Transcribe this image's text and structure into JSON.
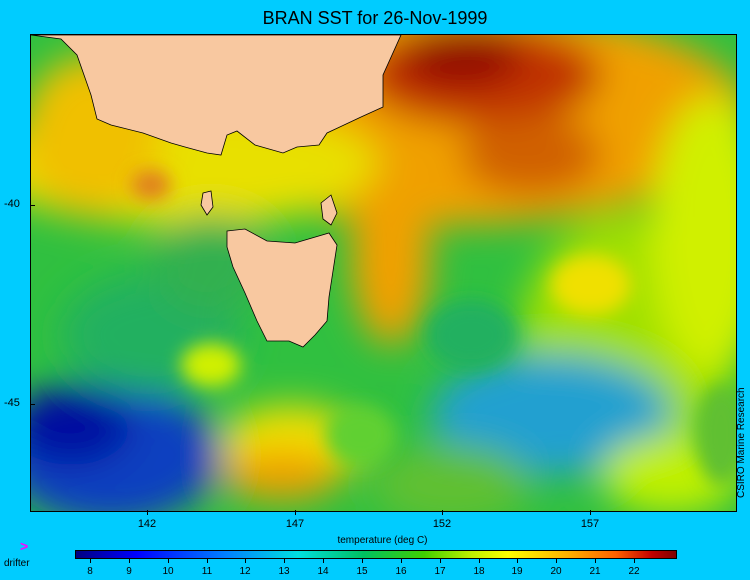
{
  "title": "BRAN SST for 26-Nov-1999",
  "x_axis": {
    "label": "temperature (deg C)",
    "ticks": [
      "142",
      "147",
      "152",
      "157"
    ]
  },
  "y_axis": {
    "ticks": [
      "-40",
      "-45"
    ]
  },
  "credit": "CSIRO Marine Research",
  "legend": {
    "drifter_symbol": ">",
    "drifter_label": "drifter"
  },
  "colorbar": {
    "ticks": [
      "8",
      "9",
      "10",
      "11",
      "12",
      "13",
      "14",
      "15",
      "16",
      "17",
      "18",
      "19",
      "20",
      "21",
      "22"
    ],
    "colors": [
      "#00007f",
      "#0000ff",
      "#0080ff",
      "#00e0e0",
      "#00c060",
      "#40d000",
      "#c0f000",
      "#ffff00",
      "#ffb000",
      "#ff6000",
      "#c00000",
      "#800000"
    ]
  },
  "colors": {
    "background": "#00ccff",
    "land": "#f8c8a0",
    "drifter": "#ff00ff"
  }
}
